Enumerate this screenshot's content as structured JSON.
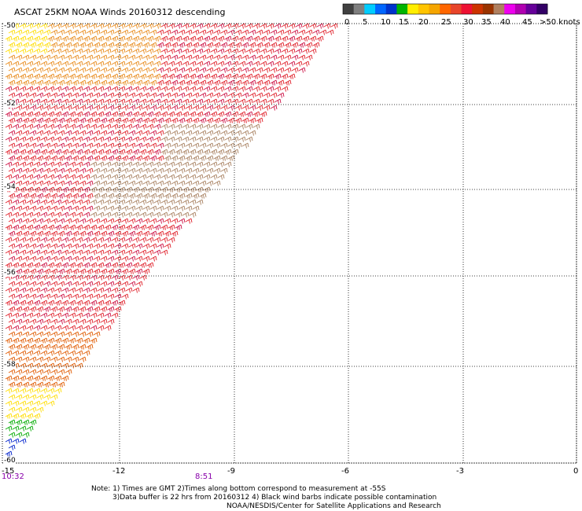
{
  "title": "ASCAT 25KM NOAA Winds 20160312 descending",
  "colorbar": {
    "colors": [
      "#404040",
      "#7f7f7f",
      "#00ccff",
      "#0066ff",
      "#0033cc",
      "#00b400",
      "#ffee00",
      "#ffc400",
      "#f5a500",
      "#ff6600",
      "#e8452a",
      "#ee1133",
      "#cc3300",
      "#993300",
      "#b08060",
      "#ee00ee",
      "#b000b0",
      "#660099",
      "#330066"
    ],
    "tick_labels": [
      "0",
      "5",
      "10",
      "15",
      "20",
      "25",
      "30",
      "35",
      "40",
      "45",
      ">50 knots"
    ]
  },
  "axes": {
    "x_ticks": [
      "-15",
      "-12",
      "-9",
      "-6",
      "-3",
      "0"
    ],
    "y_labels": [
      "-50",
      "-52",
      "-54",
      "-56",
      "-58",
      "-60"
    ]
  },
  "times": [
    {
      "label": "10:32",
      "color": "#8800aa"
    },
    {
      "label": "8:51",
      "color": "#8800aa"
    }
  ],
  "notes": {
    "line1": "Note: 1) Times are GMT 2)Times along bottom correspond to measurement at -55S",
    "line2": "3)Data buffer is 22 hrs from 20160312 4) Black wind barbs indicate possible contamination",
    "line3": "NOAA/NESDIS/Center for Satellite Applications and Research"
  },
  "legend_colors": {
    "orange": "#e88a1a",
    "dark_orange": "#e05a00",
    "red": "#e0202a",
    "crimson": "#cc1144",
    "tan": "#a88060",
    "yellow": "#ffdd00",
    "green": "#00aa00",
    "blue": "#0022cc"
  }
}
